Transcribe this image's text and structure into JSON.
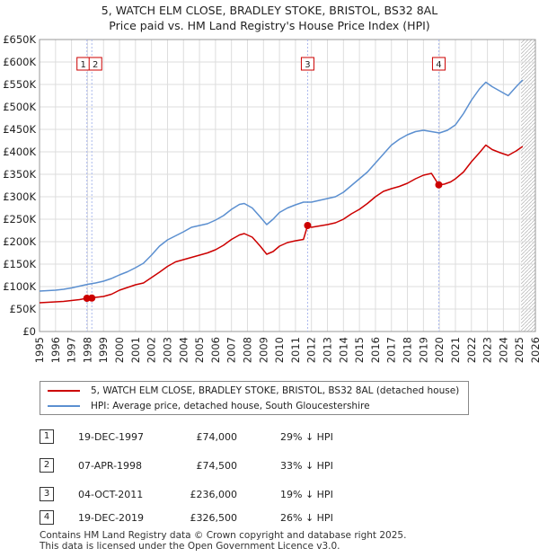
{
  "title_line1": "5, WATCH ELM CLOSE, BRADLEY STOKE, BRISTOL, BS32 8AL",
  "title_line2": "Price paid vs. HM Land Registry's House Price Index (HPI)",
  "colors": {
    "property": "#cc0000",
    "hpi": "#5b8fd0",
    "grid": "#dddddd",
    "event": "#aab8ee"
  },
  "legend": {
    "property": "5, WATCH ELM CLOSE, BRADLEY STOKE, BRISTOL, BS32 8AL (detached house)",
    "hpi": "HPI: Average price, detached house, South Gloucestershire"
  },
  "transactions": [
    {
      "num": "1",
      "date": "19-DEC-1997",
      "price": "£74,000",
      "hpi": "29% ↓ HPI"
    },
    {
      "num": "2",
      "date": "07-APR-1998",
      "price": "£74,500",
      "hpi": "33% ↓ HPI"
    },
    {
      "num": "3",
      "date": "04-OCT-2011",
      "price": "£236,000",
      "hpi": "19% ↓ HPI"
    },
    {
      "num": "4",
      "date": "19-DEC-2019",
      "price": "£326,500",
      "hpi": "26% ↓ HPI"
    }
  ],
  "footer_line1": "Contains HM Land Registry data © Crown copyright and database right 2025.",
  "footer_line2": "This data is licensed under the Open Government Licence v3.0.",
  "chart_data": {
    "type": "line",
    "title": "5, WATCH ELM CLOSE, BRADLEY STOKE, BRISTOL, BS32 8AL - Price paid vs. HM Land Registry's House Price Index (HPI)",
    "xlim": [
      1995,
      2026
    ],
    "ylim": [
      0,
      650000
    ],
    "x_ticks": [
      1995,
      1996,
      1997,
      1998,
      1999,
      2000,
      2001,
      2002,
      2003,
      2004,
      2005,
      2006,
      2007,
      2008,
      2009,
      2010,
      2011,
      2012,
      2013,
      2014,
      2015,
      2016,
      2017,
      2018,
      2019,
      2020,
      2021,
      2022,
      2023,
      2024,
      2025,
      2026
    ],
    "y_ticks": [
      {
        "v": 0,
        "label": "£0"
      },
      {
        "v": 50000,
        "label": "£50K"
      },
      {
        "v": 100000,
        "label": "£100K"
      },
      {
        "v": 150000,
        "label": "£150K"
      },
      {
        "v": 200000,
        "label": "£200K"
      },
      {
        "v": 250000,
        "label": "£250K"
      },
      {
        "v": 300000,
        "label": "£300K"
      },
      {
        "v": 350000,
        "label": "£350K"
      },
      {
        "v": 400000,
        "label": "£400K"
      },
      {
        "v": 450000,
        "label": "£450K"
      },
      {
        "v": 500000,
        "label": "£500K"
      },
      {
        "v": 550000,
        "label": "£550K"
      },
      {
        "v": 600000,
        "label": "£600K"
      },
      {
        "v": 650000,
        "label": "£650K"
      }
    ],
    "forecast_start": 2025.1,
    "series": [
      {
        "name": "5, WATCH ELM CLOSE, BRADLEY STOKE, BRISTOL, BS32 8AL (detached house)",
        "color": "#cc0000",
        "points": [
          [
            1995.0,
            64000
          ],
          [
            1995.5,
            65000
          ],
          [
            1996.0,
            66000
          ],
          [
            1996.5,
            67000
          ],
          [
            1997.0,
            69000
          ],
          [
            1997.5,
            71000
          ],
          [
            1997.96,
            74000
          ],
          [
            1998.27,
            74500
          ],
          [
            1998.5,
            76000
          ],
          [
            1999.0,
            78000
          ],
          [
            1999.5,
            83000
          ],
          [
            2000.0,
            92000
          ],
          [
            2000.5,
            98000
          ],
          [
            2001.0,
            104000
          ],
          [
            2001.5,
            108000
          ],
          [
            2002.0,
            120000
          ],
          [
            2002.5,
            132000
          ],
          [
            2003.0,
            145000
          ],
          [
            2003.5,
            155000
          ],
          [
            2004.0,
            160000
          ],
          [
            2004.5,
            165000
          ],
          [
            2005.0,
            170000
          ],
          [
            2005.5,
            175000
          ],
          [
            2006.0,
            182000
          ],
          [
            2006.5,
            192000
          ],
          [
            2007.0,
            205000
          ],
          [
            2007.5,
            215000
          ],
          [
            2007.8,
            218000
          ],
          [
            2008.3,
            210000
          ],
          [
            2008.8,
            190000
          ],
          [
            2009.2,
            172000
          ],
          [
            2009.6,
            178000
          ],
          [
            2010.0,
            190000
          ],
          [
            2010.5,
            198000
          ],
          [
            2011.0,
            202000
          ],
          [
            2011.5,
            205000
          ],
          [
            2011.76,
            236000
          ],
          [
            2012.0,
            232000
          ],
          [
            2012.5,
            235000
          ],
          [
            2013.0,
            238000
          ],
          [
            2013.5,
            242000
          ],
          [
            2014.0,
            250000
          ],
          [
            2014.5,
            262000
          ],
          [
            2015.0,
            272000
          ],
          [
            2015.5,
            285000
          ],
          [
            2016.0,
            300000
          ],
          [
            2016.5,
            312000
          ],
          [
            2017.0,
            318000
          ],
          [
            2017.5,
            323000
          ],
          [
            2018.0,
            330000
          ],
          [
            2018.5,
            340000
          ],
          [
            2019.0,
            348000
          ],
          [
            2019.5,
            352000
          ],
          [
            2019.96,
            326500
          ],
          [
            2020.3,
            328000
          ],
          [
            2020.7,
            333000
          ],
          [
            2021.0,
            340000
          ],
          [
            2021.5,
            355000
          ],
          [
            2022.0,
            378000
          ],
          [
            2022.5,
            398000
          ],
          [
            2022.9,
            415000
          ],
          [
            2023.3,
            405000
          ],
          [
            2023.8,
            398000
          ],
          [
            2024.3,
            392000
          ],
          [
            2024.8,
            402000
          ],
          [
            2025.2,
            412000
          ]
        ]
      },
      {
        "name": "HPI: Average price, detached house, South Gloucestershire",
        "color": "#5b8fd0",
        "points": [
          [
            1995.0,
            90000
          ],
          [
            1995.5,
            91000
          ],
          [
            1996.0,
            92000
          ],
          [
            1996.5,
            94000
          ],
          [
            1997.0,
            97000
          ],
          [
            1997.5,
            101000
          ],
          [
            1998.0,
            105000
          ],
          [
            1998.5,
            108000
          ],
          [
            1999.0,
            112000
          ],
          [
            1999.5,
            118000
          ],
          [
            2000.0,
            126000
          ],
          [
            2000.5,
            133000
          ],
          [
            2001.0,
            142000
          ],
          [
            2001.5,
            152000
          ],
          [
            2002.0,
            170000
          ],
          [
            2002.5,
            190000
          ],
          [
            2003.0,
            204000
          ],
          [
            2003.5,
            213000
          ],
          [
            2004.0,
            222000
          ],
          [
            2004.5,
            232000
          ],
          [
            2005.0,
            236000
          ],
          [
            2005.5,
            240000
          ],
          [
            2006.0,
            248000
          ],
          [
            2006.5,
            258000
          ],
          [
            2007.0,
            272000
          ],
          [
            2007.5,
            283000
          ],
          [
            2007.8,
            285000
          ],
          [
            2008.3,
            275000
          ],
          [
            2008.8,
            255000
          ],
          [
            2009.2,
            238000
          ],
          [
            2009.6,
            250000
          ],
          [
            2010.0,
            265000
          ],
          [
            2010.5,
            275000
          ],
          [
            2011.0,
            282000
          ],
          [
            2011.5,
            288000
          ],
          [
            2012.0,
            288000
          ],
          [
            2012.5,
            292000
          ],
          [
            2013.0,
            296000
          ],
          [
            2013.5,
            300000
          ],
          [
            2014.0,
            310000
          ],
          [
            2014.5,
            325000
          ],
          [
            2015.0,
            340000
          ],
          [
            2015.5,
            355000
          ],
          [
            2016.0,
            375000
          ],
          [
            2016.5,
            395000
          ],
          [
            2017.0,
            415000
          ],
          [
            2017.5,
            428000
          ],
          [
            2018.0,
            438000
          ],
          [
            2018.5,
            445000
          ],
          [
            2019.0,
            448000
          ],
          [
            2019.5,
            445000
          ],
          [
            2020.0,
            442000
          ],
          [
            2020.5,
            448000
          ],
          [
            2021.0,
            460000
          ],
          [
            2021.5,
            485000
          ],
          [
            2022.0,
            515000
          ],
          [
            2022.5,
            540000
          ],
          [
            2022.9,
            555000
          ],
          [
            2023.3,
            545000
          ],
          [
            2023.8,
            535000
          ],
          [
            2024.3,
            525000
          ],
          [
            2024.8,
            545000
          ],
          [
            2025.2,
            560000
          ]
        ]
      }
    ],
    "events": [
      {
        "label": "1",
        "x": 1997.96,
        "price": 74000
      },
      {
        "label": "2",
        "x": 1998.27,
        "price": 74500
      },
      {
        "label": "3",
        "x": 2011.76,
        "price": 236000
      },
      {
        "label": "4",
        "x": 2019.96,
        "price": 326500
      }
    ]
  }
}
